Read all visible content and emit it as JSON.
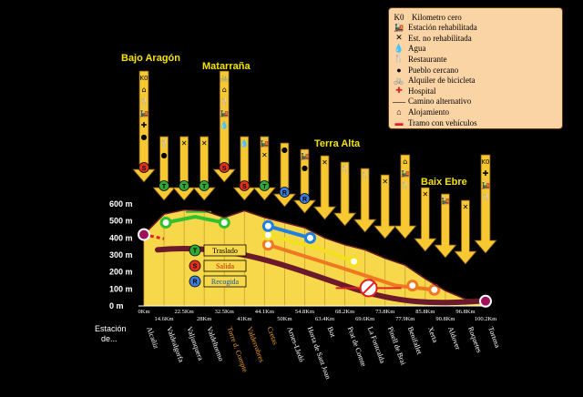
{
  "regions": [
    {
      "name": "Bajo Aragón"
    },
    {
      "name": "Matarraña"
    },
    {
      "name": "Terra Alta"
    },
    {
      "name": "Baix Ebre"
    }
  ],
  "legend": {
    "items": [
      {
        "icon": "kilometro-cero-icon",
        "glyph": "K0",
        "label": "Kilometro cero"
      },
      {
        "icon": "train-icon",
        "glyph": "🚂",
        "label": "Estación rehabilitada"
      },
      {
        "icon": "cross-icon",
        "glyph": "✕",
        "label": "Est. no rehabilitada"
      },
      {
        "icon": "water-icon",
        "glyph": "💧",
        "label": "Agua"
      },
      {
        "icon": "restaurant-icon",
        "glyph": "🍴",
        "label": "Restaurante"
      },
      {
        "icon": "village-icon",
        "glyph": "●",
        "label": "Pueblo cercano"
      },
      {
        "icon": "bicycle-icon",
        "glyph": "🚲",
        "label": "Alquiler de bicicleta"
      },
      {
        "icon": "hospital-icon",
        "glyph": "✚",
        "label": "Hospital"
      },
      {
        "icon": "alternative-path-icon",
        "glyph": "⸺",
        "label": "Camino alternativo"
      },
      {
        "icon": "lodging-icon",
        "glyph": "⌂",
        "label": "Alojamiento"
      },
      {
        "icon": "vehicle-section-icon",
        "glyph": "▬",
        "label": "Tramo con vehículos"
      }
    ]
  },
  "services_legend": [
    {
      "code": "T",
      "label": "Traslado",
      "color": "#2fa83a"
    },
    {
      "code": "S",
      "label": "Salida",
      "color": "#e0301e"
    },
    {
      "code": "R",
      "label": "Recogida",
      "color": "#3a7de0"
    }
  ],
  "y_axis": {
    "ticks": [
      "600 m",
      "500 m",
      "400 m",
      "300 m",
      "200 m",
      "100 m",
      "0 m"
    ],
    "values": [
      600,
      500,
      400,
      300,
      200,
      100,
      0
    ]
  },
  "stations_header": "Estación de...",
  "stations": [
    {
      "name": "Alcañiz",
      "km": "0Km",
      "km_value": 0,
      "elev": 420,
      "color": "#ffffff",
      "arrow": "big",
      "icons": [
        "K0",
        "⌂",
        "🍴",
        "🚂",
        "✚",
        "●"
      ],
      "service": "S"
    },
    {
      "name": "Valdealgorfa",
      "km": "14.6Km",
      "km_value": 14.6,
      "elev": 540,
      "color": "#ffffff",
      "arrow": "small",
      "icons": [
        "🍴",
        "●"
      ],
      "service": "T"
    },
    {
      "name": "Valjunquera",
      "km": "22.5Km",
      "km_value": 22.5,
      "elev": 565,
      "color": "#ffffff",
      "arrow": "small",
      "icons": [
        "✕"
      ],
      "service": "T"
    },
    {
      "name": "Valdeltormo",
      "km": "28Km",
      "km_value": 28,
      "elev": 560,
      "color": "#ffffff",
      "arrow": "small",
      "icons": [
        "✕"
      ],
      "service": "T"
    },
    {
      "name": "Torre d. Compte",
      "km": "32.5Km",
      "km_value": 32.5,
      "elev": 520,
      "color": "#f0a020",
      "arrow": "big",
      "icons": [
        "🚲",
        "⌂",
        "🍴",
        "🚂",
        "💧"
      ],
      "service": "S"
    },
    {
      "name": "Valderrobres",
      "km": "41Km",
      "km_value": 41,
      "elev": 560,
      "color": "#f0a020",
      "arrow": "small",
      "icons": [
        "💧"
      ],
      "service": "S"
    },
    {
      "name": "Cretas",
      "km": "44.1Km",
      "km_value": 44.1,
      "elev": 520,
      "color": "#f0a020",
      "arrow": "small",
      "icons": [
        "🚂",
        "✕"
      ],
      "service": "T"
    },
    {
      "name": "Arnes-Lledó",
      "km": "50Km",
      "km_value": 50,
      "elev": 490,
      "color": "#ffffff",
      "arrow": "small",
      "icons": [
        "●"
      ],
      "service": "R"
    },
    {
      "name": "Horta de Sant Joan",
      "km": "54.8Km",
      "km_value": 54.8,
      "elev": 460,
      "color": "#ffffff",
      "arrow": "small",
      "icons": [
        "🚂",
        "●"
      ],
      "service": "R"
    },
    {
      "name": "Bot",
      "km": "63.4Km",
      "km_value": 63.4,
      "elev": 400,
      "color": "#ffffff",
      "arrow": "small",
      "icons": [
        "✕"
      ],
      "service": ""
    },
    {
      "name": "Prat de Comte",
      "km": "68.2Km",
      "km_value": 68.2,
      "elev": 360,
      "color": "#ffffff",
      "arrow": "small",
      "icons": [
        "🍴"
      ],
      "service": ""
    },
    {
      "name": "La Fontcalda",
      "km": "69.6Km",
      "km_value": 69.6,
      "elev": 330,
      "color": "#ffffff",
      "arrow": "small",
      "icons": [
        "🍴"
      ],
      "service": ""
    },
    {
      "name": "Pinell de Brai",
      "km": "73.8Km",
      "km_value": 73.8,
      "elev": 280,
      "color": "#ffffff",
      "arrow": "small",
      "icons": [
        "✕"
      ],
      "service": ""
    },
    {
      "name": "Benifallet",
      "km": "77.9Km",
      "km_value": 77.9,
      "elev": 240,
      "color": "#ffffff",
      "arrow": "big",
      "icons": [
        "⌂",
        "🚂",
        "🍴"
      ],
      "service": ""
    },
    {
      "name": "Xerta",
      "km": "85.8Km",
      "km_value": 85.8,
      "elev": 160,
      "color": "#ffffff",
      "arrow": "small",
      "icons": [
        "✕"
      ],
      "service": ""
    },
    {
      "name": "Aldover",
      "km": "90.8Km",
      "km_value": 90.8,
      "elev": 90,
      "color": "#ffffff",
      "arrow": "small",
      "icons": [
        "🚂"
      ],
      "service": ""
    },
    {
      "name": "Roquetes",
      "km": "96.8Km",
      "km_value": 96.8,
      "elev": 40,
      "color": "#ffffff",
      "arrow": "small",
      "icons": [
        "✕"
      ],
      "service": ""
    },
    {
      "name": "Tortosa",
      "km": "100.2Km",
      "km_value": 100.2,
      "elev": 30,
      "color": "#ffffff",
      "arrow": "big",
      "icons": [
        "K0",
        "✚",
        "🚂",
        "🍴"
      ],
      "service": ""
    }
  ],
  "colors": {
    "fill": "#f7d84a",
    "profile": "#6a1a2a",
    "arrow": "#f7c831",
    "green": "#30c030",
    "white": "#ffffff",
    "yellow": "#f5e020",
    "orange": "#f07820",
    "blue": "#2080e0",
    "red_dashed": "#e02020"
  }
}
